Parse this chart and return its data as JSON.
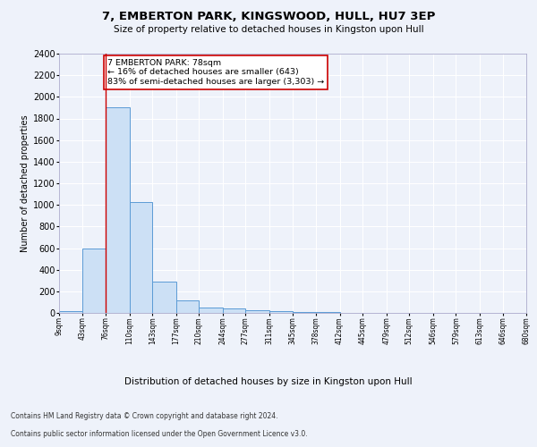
{
  "title": "7, EMBERTON PARK, KINGSWOOD, HULL, HU7 3EP",
  "subtitle": "Size of property relative to detached houses in Kingston upon Hull",
  "xlabel": "Distribution of detached houses by size in Kingston upon Hull",
  "ylabel": "Number of detached properties",
  "footer_line1": "Contains HM Land Registry data © Crown copyright and database right 2024.",
  "footer_line2": "Contains public sector information licensed under the Open Government Licence v3.0.",
  "annotation_title": "7 EMBERTON PARK: 78sqm",
  "annotation_line2": "← 16% of detached houses are smaller (643)",
  "annotation_line3": "83% of semi-detached houses are larger (3,303) →",
  "property_size": 78,
  "bar_edge_color": "#5b9bd5",
  "bar_face_color": "#cce0f5",
  "vline_color": "#cc0000",
  "annotation_box_edgecolor": "#cc0000",
  "annotation_box_facecolor": "#ffffff",
  "background_color": "#eef2fa",
  "grid_color": "#ffffff",
  "ylim": [
    0,
    2400
  ],
  "bin_edges": [
    9,
    43,
    76,
    110,
    143,
    177,
    210,
    244,
    277,
    311,
    345,
    378,
    412,
    445,
    479,
    512,
    546,
    579,
    613,
    646,
    680
  ],
  "bin_labels": [
    "9sqm",
    "43sqm",
    "76sqm",
    "110sqm",
    "143sqm",
    "177sqm",
    "210sqm",
    "244sqm",
    "277sqm",
    "311sqm",
    "345sqm",
    "378sqm",
    "412sqm",
    "445sqm",
    "479sqm",
    "512sqm",
    "546sqm",
    "579sqm",
    "613sqm",
    "646sqm",
    "680sqm"
  ],
  "bar_heights": [
    20,
    600,
    1900,
    1030,
    290,
    115,
    50,
    40,
    25,
    15,
    8,
    5,
    3,
    2,
    2,
    1,
    1,
    1,
    1,
    1
  ],
  "vline_bin_index": 2,
  "title_fontsize": 9.5,
  "subtitle_fontsize": 7.5,
  "ylabel_fontsize": 7,
  "xtick_fontsize": 5.5,
  "ytick_fontsize": 7,
  "xlabel_fontsize": 7.5,
  "footer_fontsize": 5.5,
  "annotation_fontsize": 6.8
}
